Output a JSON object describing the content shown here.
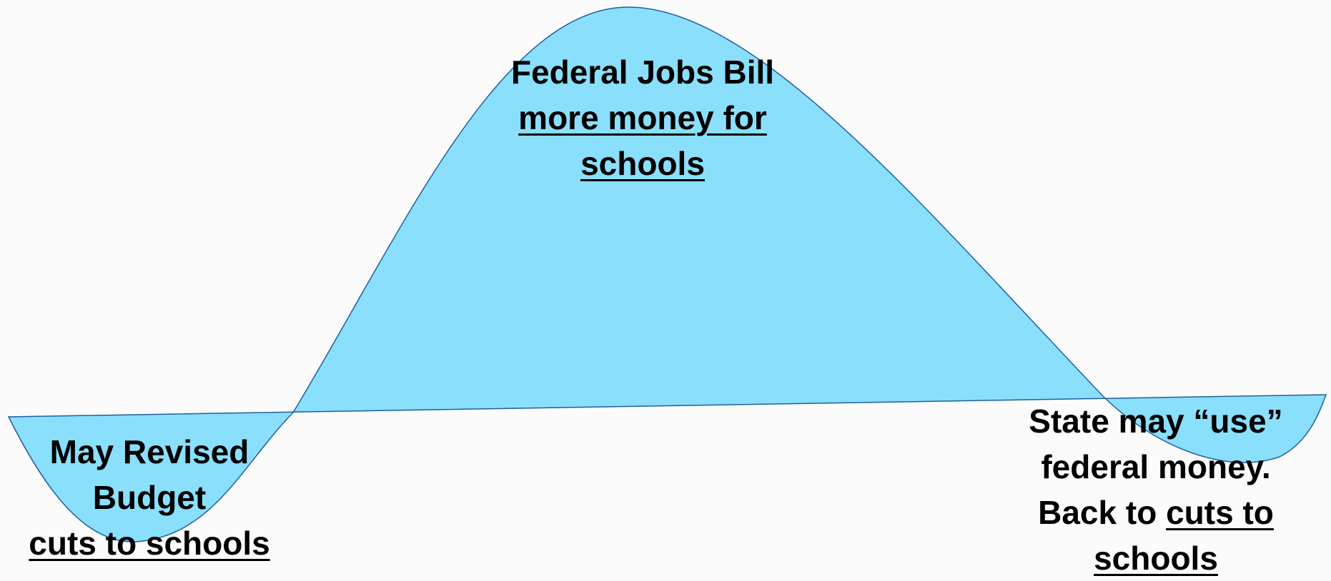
{
  "labels": [
    {
      "lines": [
        "Federal Jobs Bill",
        "more money for",
        "schools"
      ]
    },
    {
      "lines": [
        "May Revised",
        "Budget",
        "cuts to schools"
      ]
    },
    {
      "lines": [
        "State may “use”",
        "federal money.",
        "Back to",
        "cuts to",
        "schools"
      ]
    }
  ]
}
